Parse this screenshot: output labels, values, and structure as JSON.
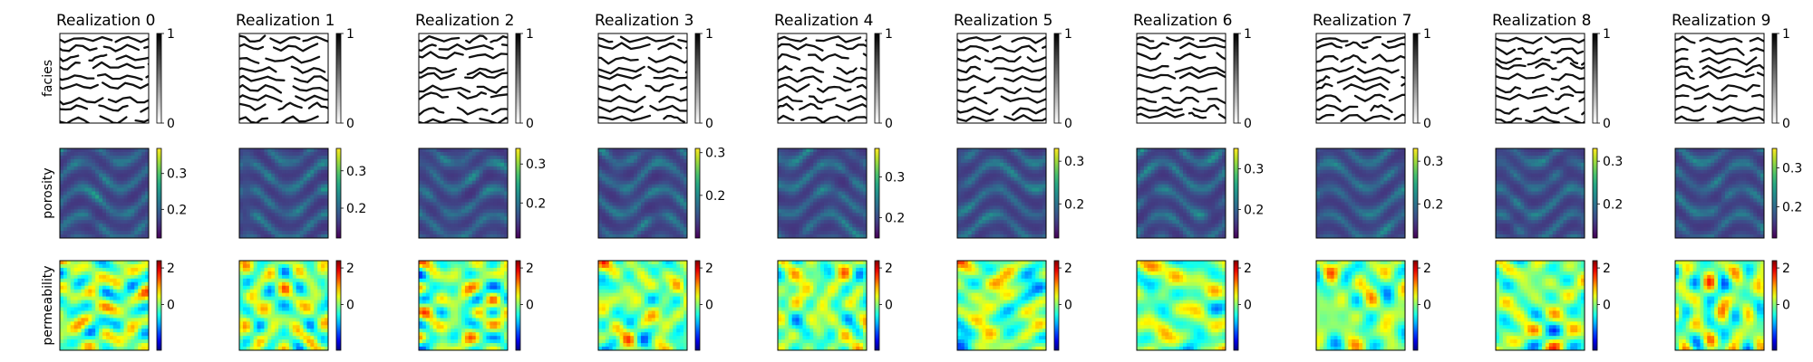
{
  "chart_data": {
    "type": "heatmap",
    "subplots_grid": {
      "rows": 3,
      "cols": 10
    },
    "column_titles": [
      "Realization 0",
      "Realization 1",
      "Realization 2",
      "Realization 3",
      "Realization 4",
      "Realization 5",
      "Realization 6",
      "Realization 7",
      "Realization 8",
      "Realization 9"
    ],
    "row_labels": [
      "facies",
      "porosity",
      "permeability"
    ],
    "rows": [
      {
        "variable": "facies",
        "colormap": "gray_r",
        "colorbars": [
          {
            "ticks": [
              0,
              1
            ],
            "range": [
              0,
              1
            ]
          },
          {
            "ticks": [
              0,
              1
            ],
            "range": [
              0,
              1
            ]
          },
          {
            "ticks": [
              0,
              1
            ],
            "range": [
              0,
              1
            ]
          },
          {
            "ticks": [
              0,
              1
            ],
            "range": [
              0,
              1
            ]
          },
          {
            "ticks": [
              0,
              1
            ],
            "range": [
              0,
              1
            ]
          },
          {
            "ticks": [
              0,
              1
            ],
            "range": [
              0,
              1
            ]
          },
          {
            "ticks": [
              0,
              1
            ],
            "range": [
              0,
              1
            ]
          },
          {
            "ticks": [
              0,
              1
            ],
            "range": [
              0,
              1
            ]
          },
          {
            "ticks": [
              0,
              1
            ],
            "range": [
              0,
              1
            ]
          },
          {
            "ticks": [
              0,
              1
            ],
            "range": [
              0,
              1
            ]
          }
        ]
      },
      {
        "variable": "porosity",
        "colormap": "viridis",
        "colorbars": [
          {
            "ticks": [
              0.2,
              0.3
            ],
            "range": [
              0.12,
              0.37
            ]
          },
          {
            "ticks": [
              0.2,
              0.3
            ],
            "range": [
              0.12,
              0.36
            ]
          },
          {
            "ticks": [
              0.2,
              0.3
            ],
            "range": [
              0.11,
              0.34
            ]
          },
          {
            "ticks": [
              0.2,
              0.3
            ],
            "range": [
              0.1,
              0.31
            ]
          },
          {
            "ticks": [
              0.2,
              0.3
            ],
            "range": [
              0.15,
              0.37
            ]
          },
          {
            "ticks": [
              0.2,
              0.3
            ],
            "range": [
              0.12,
              0.33
            ]
          },
          {
            "ticks": [
              0.2,
              0.3
            ],
            "range": [
              0.13,
              0.35
            ]
          },
          {
            "ticks": [
              0.2,
              0.3
            ],
            "range": [
              0.12,
              0.33
            ]
          },
          {
            "ticks": [
              0.2,
              0.3
            ],
            "range": [
              0.12,
              0.33
            ]
          },
          {
            "ticks": [
              0.2,
              0.3
            ],
            "range": [
              0.12,
              0.35
            ]
          }
        ]
      },
      {
        "variable": "permeability",
        "colormap": "jet",
        "colorbars": [
          {
            "ticks": [
              0,
              2
            ],
            "range": [
              -2.5,
              2.4
            ]
          },
          {
            "ticks": [
              0,
              2
            ],
            "range": [
              -2.5,
              2.4
            ]
          },
          {
            "ticks": [
              0,
              2
            ],
            "range": [
              -2.5,
              2.4
            ]
          },
          {
            "ticks": [
              0,
              2
            ],
            "range": [
              -2.5,
              2.4
            ]
          },
          {
            "ticks": [
              0,
              2
            ],
            "range": [
              -2.5,
              2.4
            ]
          },
          {
            "ticks": [
              0,
              2
            ],
            "range": [
              -2.5,
              2.4
            ]
          },
          {
            "ticks": [
              0,
              2
            ],
            "range": [
              -2.5,
              2.4
            ]
          },
          {
            "ticks": [
              0,
              2
            ],
            "range": [
              -2.5,
              2.4
            ]
          },
          {
            "ticks": [
              0,
              2
            ],
            "range": [
              -2.5,
              2.4
            ]
          },
          {
            "ticks": [
              0,
              2
            ],
            "range": [
              -2.5,
              2.4
            ]
          }
        ]
      }
    ]
  }
}
